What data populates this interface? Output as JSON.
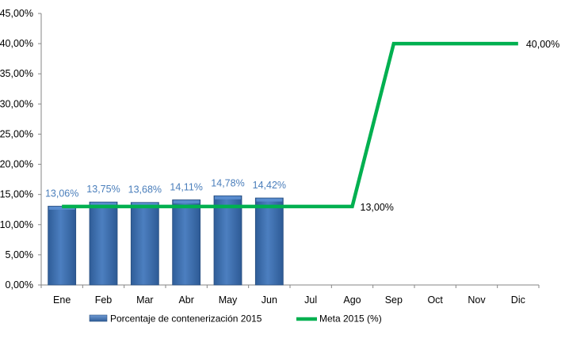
{
  "chart_data": {
    "type": "bar",
    "categories": [
      "Ene",
      "Feb",
      "Mar",
      "Abr",
      "May",
      "Jun",
      "Jul",
      "Ago",
      "Sep",
      "Oct",
      "Nov",
      "Dic"
    ],
    "series": [
      {
        "name": "Porcentaje de contenerización 2015",
        "type": "bar",
        "values": [
          13.06,
          13.75,
          13.68,
          14.11,
          14.78,
          14.42,
          null,
          null,
          null,
          null,
          null,
          null
        ],
        "labels": [
          "13,06%",
          "13,75%",
          "13,68%",
          "14,11%",
          "14,78%",
          "14,42%"
        ],
        "color": "#4a7ebb"
      },
      {
        "name": "Meta 2015 (%)",
        "type": "line",
        "values": [
          13,
          13,
          13,
          13,
          13,
          13,
          13,
          13,
          40,
          40,
          40,
          40
        ],
        "labels": [
          "13,00%",
          "40,00%"
        ],
        "color": "#00b050"
      }
    ],
    "ylim": [
      0,
      45
    ],
    "yticks": [
      "0,00%",
      "5,00%",
      "10,00%",
      "15,00%",
      "20,00%",
      "25,00%",
      "30,00%",
      "35,00%",
      "40,00%",
      "45,00%"
    ],
    "grid": false,
    "legend": "bottom"
  }
}
